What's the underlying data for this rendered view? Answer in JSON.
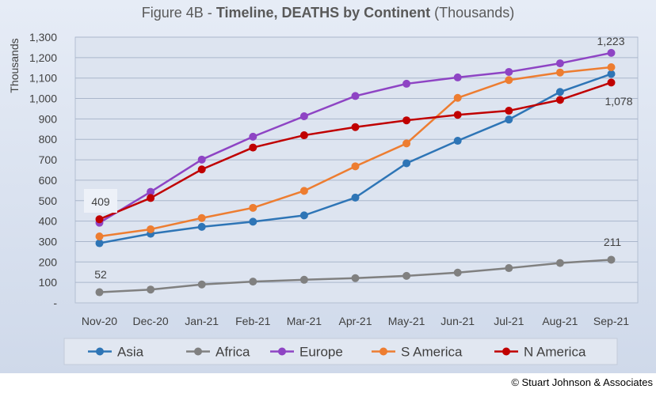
{
  "chart_data": {
    "type": "line",
    "title_prefix": "Figure 4B - ",
    "title_bold": "Timeline, DEATHS by Continent",
    "title_suffix": " (Thousands)",
    "ylabel": "Thousands",
    "xlabel": "",
    "ylim": [
      0,
      1300
    ],
    "y_ticks": [
      "-",
      "100",
      "200",
      "300",
      "400",
      "500",
      "600",
      "700",
      "800",
      "900",
      "1,000",
      "1,100",
      "1,200",
      "1,300"
    ],
    "grid": true,
    "legend_position": "bottom",
    "categories": [
      "Nov-20",
      "Dec-20",
      "Jan-21",
      "Feb-21",
      "Mar-21",
      "Apr-21",
      "May-21",
      "Jun-21",
      "Jul-21",
      "Aug-21",
      "Sep-21"
    ],
    "series": [
      {
        "name": "Asia",
        "color": "#2e75b6",
        "values": [
          292,
          338,
          372,
          397,
          428,
          515,
          683,
          793,
          897,
          1032,
          1120
        ]
      },
      {
        "name": "Africa",
        "color": "#808080",
        "values": [
          52,
          65,
          90,
          104,
          113,
          121,
          132,
          148,
          170,
          195,
          211
        ]
      },
      {
        "name": "Europe",
        "color": "#8e44c4",
        "values": [
          392,
          543,
          701,
          813,
          913,
          1012,
          1072,
          1103,
          1130,
          1172,
          1223
        ]
      },
      {
        "name": "S America",
        "color": "#ed7d31",
        "values": [
          325,
          360,
          415,
          465,
          548,
          668,
          780,
          1003,
          1090,
          1127,
          1153
        ]
      },
      {
        "name": "N America",
        "color": "#c00000",
        "values": [
          409,
          513,
          653,
          760,
          820,
          860,
          893,
          920,
          940,
          993,
          1078
        ]
      }
    ],
    "annotations": [
      "409",
      "52",
      "1,223",
      "211",
      "1,078"
    ]
  },
  "copyright": "© Stuart Johnson & Associates"
}
